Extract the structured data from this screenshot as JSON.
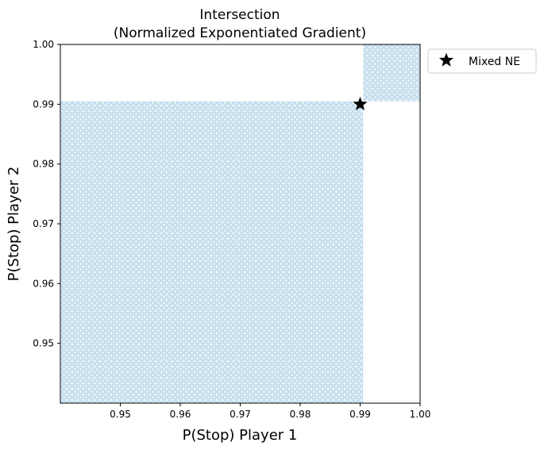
{
  "chart_data": {
    "type": "scatter",
    "title_line1": "Intersection",
    "title_line2": "(Normalized Exponentiated Gradient)",
    "xlabel": "P(Stop) Player 1",
    "ylabel": "P(Stop) Player 2",
    "xlim": [
      0.94,
      1.0
    ],
    "ylim": [
      0.94,
      1.0
    ],
    "xticks": [
      {
        "value": 0.95,
        "label": "0.95"
      },
      {
        "value": 0.96,
        "label": "0.96"
      },
      {
        "value": 0.97,
        "label": "0.97"
      },
      {
        "value": 0.98,
        "label": "0.98"
      },
      {
        "value": 0.99,
        "label": "0.99"
      },
      {
        "value": 1.0,
        "label": "1.00"
      }
    ],
    "yticks": [
      {
        "value": 0.95,
        "label": "0.95"
      },
      {
        "value": 0.96,
        "label": "0.96"
      },
      {
        "value": 0.97,
        "label": "0.97"
      },
      {
        "value": 0.98,
        "label": "0.98"
      },
      {
        "value": 0.99,
        "label": "0.99"
      },
      {
        "value": 1.0,
        "label": "1.00"
      }
    ],
    "regions": [
      {
        "x": [
          0.94,
          0.9905
        ],
        "y": [
          0.94,
          0.9905
        ],
        "color": "#9ecae1"
      },
      {
        "x": [
          0.9905,
          1.0
        ],
        "y": [
          0.9905,
          1.0
        ],
        "color": "#9ecae1"
      }
    ],
    "points": [
      {
        "name": "Mixed NE",
        "x": 0.99,
        "y": 0.99,
        "marker": "star",
        "color": "#000000"
      }
    ],
    "legend": {
      "position": "outside-top-right",
      "entries": [
        "Mixed NE"
      ]
    },
    "grid": false
  }
}
